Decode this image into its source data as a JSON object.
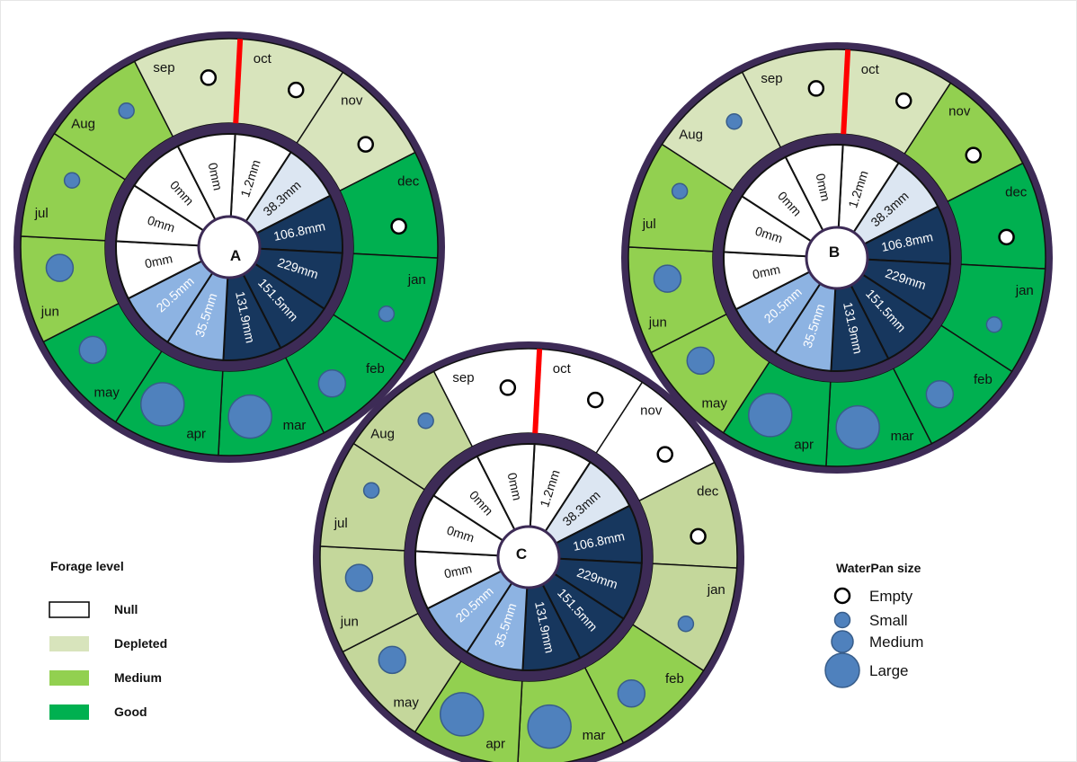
{
  "colors": {
    "null": "#ffffff",
    "depleted": "#d8e4bc",
    "depleted_alt": "#c4d79b",
    "medium": "#92d050",
    "good": "#00b050",
    "ring": "#3d2b56",
    "rain_dark": "#17375e",
    "rain_mid": "#8db3e2",
    "rain_light": "#dce6f2",
    "pan": "#4f81bd",
    "oct_marker": "#ff0000"
  },
  "months": [
    "oct",
    "nov",
    "dec",
    "jan",
    "feb",
    "mar",
    "apr",
    "may",
    "jun",
    "jul",
    "Aug",
    "sep"
  ],
  "rainfall": [
    {
      "label": "1.2mm",
      "shade": "null"
    },
    {
      "label": "38.3mm",
      "shade": "light"
    },
    {
      "label": "106.8mm",
      "shade": "dark"
    },
    {
      "label": "229mm",
      "shade": "dark"
    },
    {
      "label": "151.5mm",
      "shade": "dark"
    },
    {
      "label": "131.9mm",
      "shade": "dark"
    },
    {
      "label": "35.5mm",
      "shade": "mid"
    },
    {
      "label": "20.5mm",
      "shade": "mid"
    },
    {
      "label": "0mm",
      "shade": "null"
    },
    {
      "label": "0mm",
      "shade": "null"
    },
    {
      "label": "0mm",
      "shade": "null"
    },
    {
      "label": "0mm",
      "shade": "null"
    }
  ],
  "wheels": [
    {
      "id": "A",
      "forage": [
        "depleted",
        "depleted",
        "good",
        "good",
        "good",
        "good",
        "good",
        "good",
        "medium",
        "medium",
        "medium",
        "depleted"
      ],
      "waterpan": [
        "empty",
        "empty",
        "empty",
        "small",
        "medium",
        "large",
        "large",
        "medium",
        "medium",
        "small",
        "small",
        "empty"
      ]
    },
    {
      "id": "B",
      "forage": [
        "depleted",
        "medium",
        "good",
        "good",
        "good",
        "good",
        "good",
        "medium",
        "medium",
        "medium",
        "depleted",
        "depleted"
      ],
      "waterpan": [
        "empty",
        "empty",
        "empty",
        "small",
        "medium",
        "large",
        "large",
        "medium",
        "medium",
        "small",
        "small",
        "empty"
      ]
    },
    {
      "id": "C",
      "forage": [
        "null",
        "null",
        "depleted_alt",
        "depleted_alt",
        "medium",
        "medium",
        "medium",
        "depleted_alt",
        "depleted_alt",
        "depleted_alt",
        "depleted_alt",
        "null"
      ],
      "waterpan": [
        "empty",
        "empty",
        "empty",
        "small",
        "medium",
        "large",
        "large",
        "medium",
        "medium",
        "small",
        "small",
        "empty"
      ]
    }
  ],
  "legend_forage": {
    "title": "Forage level",
    "items": [
      {
        "key": "null",
        "label": "Null"
      },
      {
        "key": "depleted",
        "label": "Depleted"
      },
      {
        "key": "medium",
        "label": "Medium"
      },
      {
        "key": "good",
        "label": "Good"
      }
    ]
  },
  "legend_waterpan": {
    "title": "WaterPan size",
    "items": [
      {
        "key": "empty",
        "label": "Empty"
      },
      {
        "key": "small",
        "label": "Small"
      },
      {
        "key": "medium",
        "label": "Medium"
      },
      {
        "key": "large",
        "label": "Large"
      }
    ]
  }
}
